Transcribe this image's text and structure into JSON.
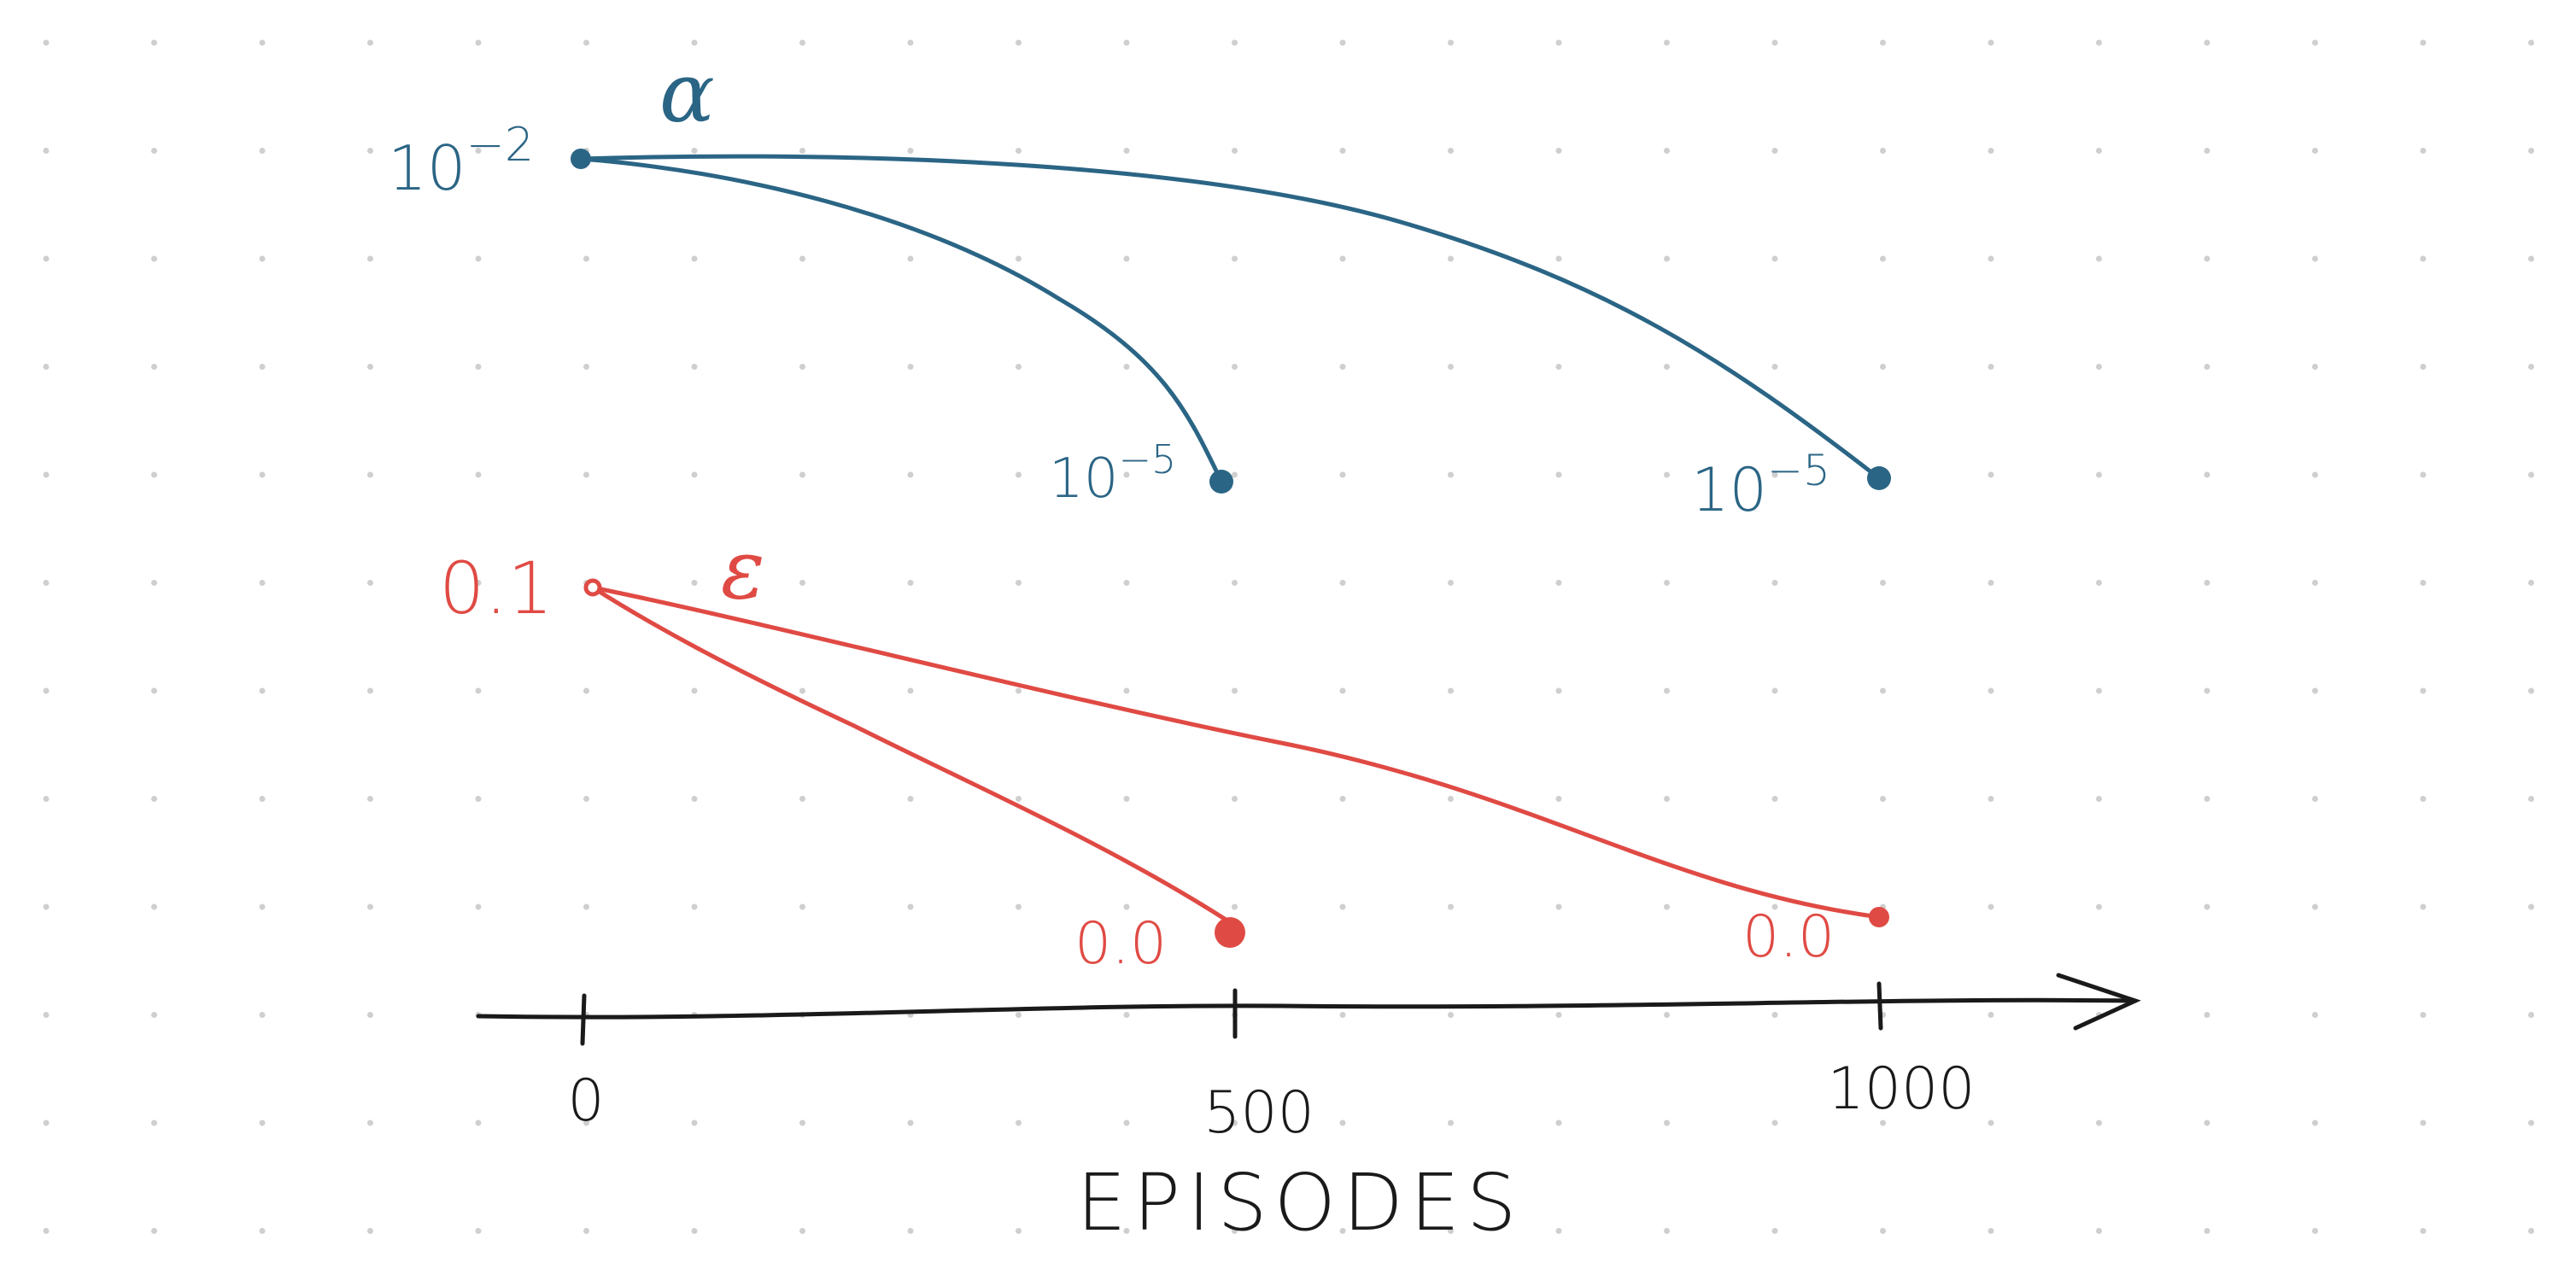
{
  "colors": {
    "alpha": "#2b6585",
    "epsilon": "#e04a44",
    "axis": "#1a1a1a",
    "dots": "#cfcfcf",
    "background": "#ffffff"
  },
  "x_axis": {
    "label": "EPISODES",
    "ticks": [
      {
        "value": 0,
        "label": "0"
      },
      {
        "value": 500,
        "label": "500"
      },
      {
        "value": 1000,
        "label": "1000"
      }
    ]
  },
  "alpha": {
    "symbol": "α",
    "start": {
      "base": "10",
      "exp": "−2"
    },
    "end_500": {
      "base": "10",
      "exp": "−5"
    },
    "end_1000": {
      "base": "10",
      "exp": "−5"
    }
  },
  "epsilon": {
    "symbol": "ε",
    "start": "0.1",
    "end_500": "0.0",
    "end_1000": "0.0"
  },
  "schedules": [
    {
      "parameter": "alpha",
      "from_episode": 0,
      "to_episode": 500,
      "from_value": "10^-2",
      "to_value": "10^-5"
    },
    {
      "parameter": "alpha",
      "from_episode": 0,
      "to_episode": 1000,
      "from_value": "10^-2",
      "to_value": "10^-5"
    },
    {
      "parameter": "epsilon",
      "from_episode": 0,
      "to_episode": 500,
      "from_value": "0.1",
      "to_value": "0.0"
    },
    {
      "parameter": "epsilon",
      "from_episode": 0,
      "to_episode": 1000,
      "from_value": "0.1",
      "to_value": "0.0"
    }
  ]
}
